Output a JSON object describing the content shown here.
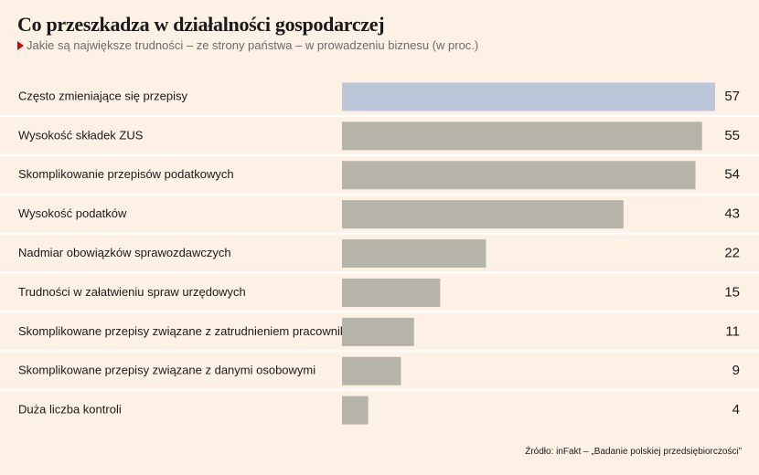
{
  "chart_data": {
    "type": "bar",
    "orientation": "horizontal",
    "title": "Co przeszkadza w działalności gospodarczej",
    "subtitle": "Jakie są największe trudności – ze strony państwa – w prowadzeniu biznesu (w proc.)",
    "categories": [
      "Często zmieniające się przepisy",
      "Wysokość składek ZUS",
      "Skomplikowanie przepisów podatkowych",
      "Wysokość podatków",
      "Nadmiar obowiązków sprawozdawczych",
      "Trudności w załatwieniu spraw urzędowych",
      "Skomplikowane przepisy związane z zatrudnieniem pracowników",
      "Skomplikowane przepisy związane z danymi osobowymi",
      "Duża liczba kontroli"
    ],
    "values": [
      57,
      55,
      54,
      43,
      22,
      15,
      11,
      9,
      4
    ],
    "xlim": [
      0,
      57
    ],
    "grid": false,
    "legend": "none",
    "colors": {
      "highlight": "#bcc6d9",
      "bar": "#b6b3a9",
      "separator": "#ffffff",
      "background": "#fdf1e6",
      "marker": "#cc0a0a"
    }
  },
  "source": "Źródło: inFakt – „Badanie polskiej przedsiębiorczości”"
}
